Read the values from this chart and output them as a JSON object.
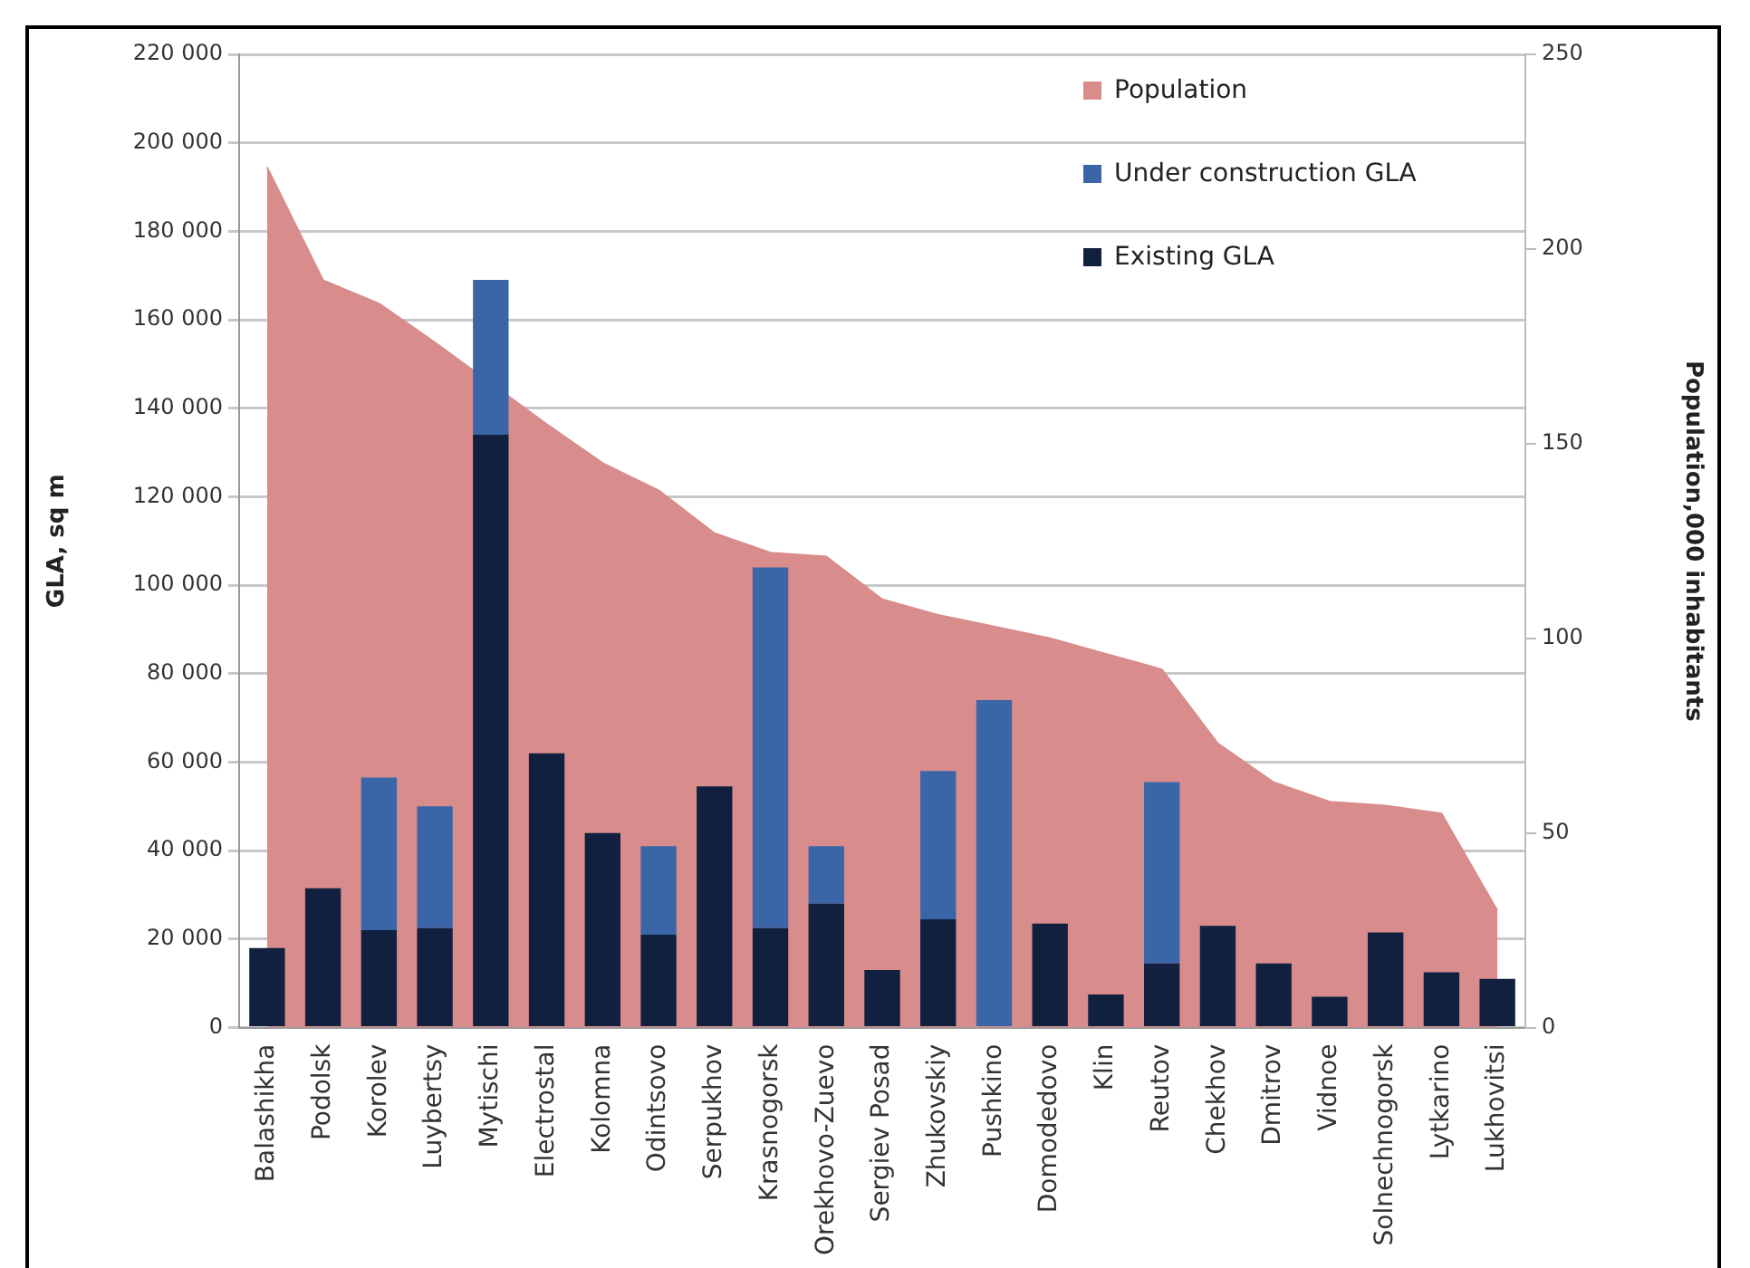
{
  "chart_data": {
    "type": "bar",
    "stacked": true,
    "ylabel": "GLA, sq m",
    "y2label": "Population,000 inhabitants",
    "categories": [
      "Balashikha",
      "Podolsk",
      "Korolev",
      "Luybertsy",
      "Mytischi",
      "Electrostal",
      "Kolomna",
      "Odintsovo",
      "Serpukhov",
      "Krasnogorsk",
      "Orekhovo-Zuevo",
      "Sergiev Posad",
      "Zhukovskiy",
      "Pushkino",
      "Domodedovo",
      "Klin",
      "Reutov",
      "Chekhov",
      "Dmitrov",
      "Vidnoe",
      "Solnechnogorsk",
      "Lytkarino",
      "Lukhovitsi"
    ],
    "series": [
      {
        "name": "Population",
        "type": "area",
        "axis": "y2",
        "color": "#d88c8c",
        "values": [
          221,
          192,
          186,
          176,
          null,
          155,
          145,
          138,
          127,
          122,
          121,
          110,
          106,
          103,
          100,
          96,
          92,
          73,
          63,
          58,
          57,
          55,
          30
        ]
      },
      {
        "name": "Existing GLA",
        "color": "#10203e",
        "values": [
          18000,
          31500,
          22000,
          22500,
          134000,
          62000,
          44000,
          21000,
          54500,
          22500,
          28000,
          13000,
          24500,
          0,
          23500,
          7500,
          14500,
          23000,
          14500,
          7000,
          21500,
          12500,
          11000
        ]
      },
      {
        "name": "Under construction GLA",
        "color": "#3a66a8",
        "values": [
          0,
          0,
          34500,
          27500,
          35000,
          0,
          0,
          20000,
          0,
          81500,
          13000,
          0,
          33500,
          74000,
          0,
          0,
          41000,
          0,
          0,
          0,
          0,
          0,
          0
        ]
      }
    ],
    "ylim": [
      0,
      220000
    ],
    "yticks": [
      {
        "value": 0,
        "label": "0"
      },
      {
        "value": 20000,
        "label": "20 000"
      },
      {
        "value": 40000,
        "label": "40 000"
      },
      {
        "value": 60000,
        "label": "60 000"
      },
      {
        "value": 80000,
        "label": "80 000"
      },
      {
        "value": 100000,
        "label": "100 000"
      },
      {
        "value": 120000,
        "label": "120 000"
      },
      {
        "value": 140000,
        "label": "140 000"
      },
      {
        "value": 160000,
        "label": "160 000"
      },
      {
        "value": 180000,
        "label": "180 000"
      },
      {
        "value": 200000,
        "label": "200 000"
      },
      {
        "value": 220000,
        "label": "220 000"
      }
    ],
    "y2lim": [
      0,
      250
    ],
    "y2ticks": [
      0,
      50,
      100,
      150,
      200,
      250
    ],
    "grid": "y",
    "legend": "top right"
  }
}
